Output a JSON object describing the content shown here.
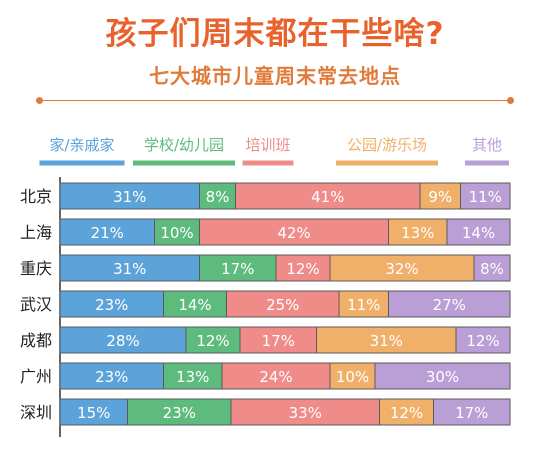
{
  "header": {
    "title": "孩子们周末都在干些啥?",
    "subtitle": "七大城市儿童周末常去地点"
  },
  "colors": {
    "title": "#e8622c",
    "subtitle": "#e07b3c",
    "axis": "#333333",
    "bar_text": "#ffffff",
    "bar_border": "#5a5a5a",
    "series": [
      "#5ba3d9",
      "#5dbb7d",
      "#ef8c8a",
      "#f0b06a",
      "#b99fd6"
    ]
  },
  "chart_data": {
    "type": "bar",
    "orientation": "horizontal",
    "stacked": true,
    "title": "孩子们周末都在干些啥?",
    "subtitle": "七大城市儿童周末常去地点",
    "categories": [
      "北京",
      "上海",
      "重庆",
      "武汉",
      "成都",
      "广州",
      "深圳"
    ],
    "value_unit": "%",
    "legend_position": "top",
    "grid": false,
    "series": [
      {
        "name": "家/亲戚家",
        "values": [
          31,
          21,
          31,
          23,
          28,
          23,
          15
        ]
      },
      {
        "name": "学校/幼儿园",
        "values": [
          8,
          10,
          17,
          14,
          12,
          13,
          23
        ]
      },
      {
        "name": "培训班",
        "values": [
          41,
          42,
          12,
          25,
          17,
          24,
          33
        ]
      },
      {
        "name": "公园/游乐场",
        "values": [
          9,
          13,
          32,
          11,
          31,
          10,
          12
        ]
      },
      {
        "name": "其他",
        "values": [
          11,
          14,
          8,
          27,
          12,
          30,
          17
        ]
      }
    ]
  }
}
